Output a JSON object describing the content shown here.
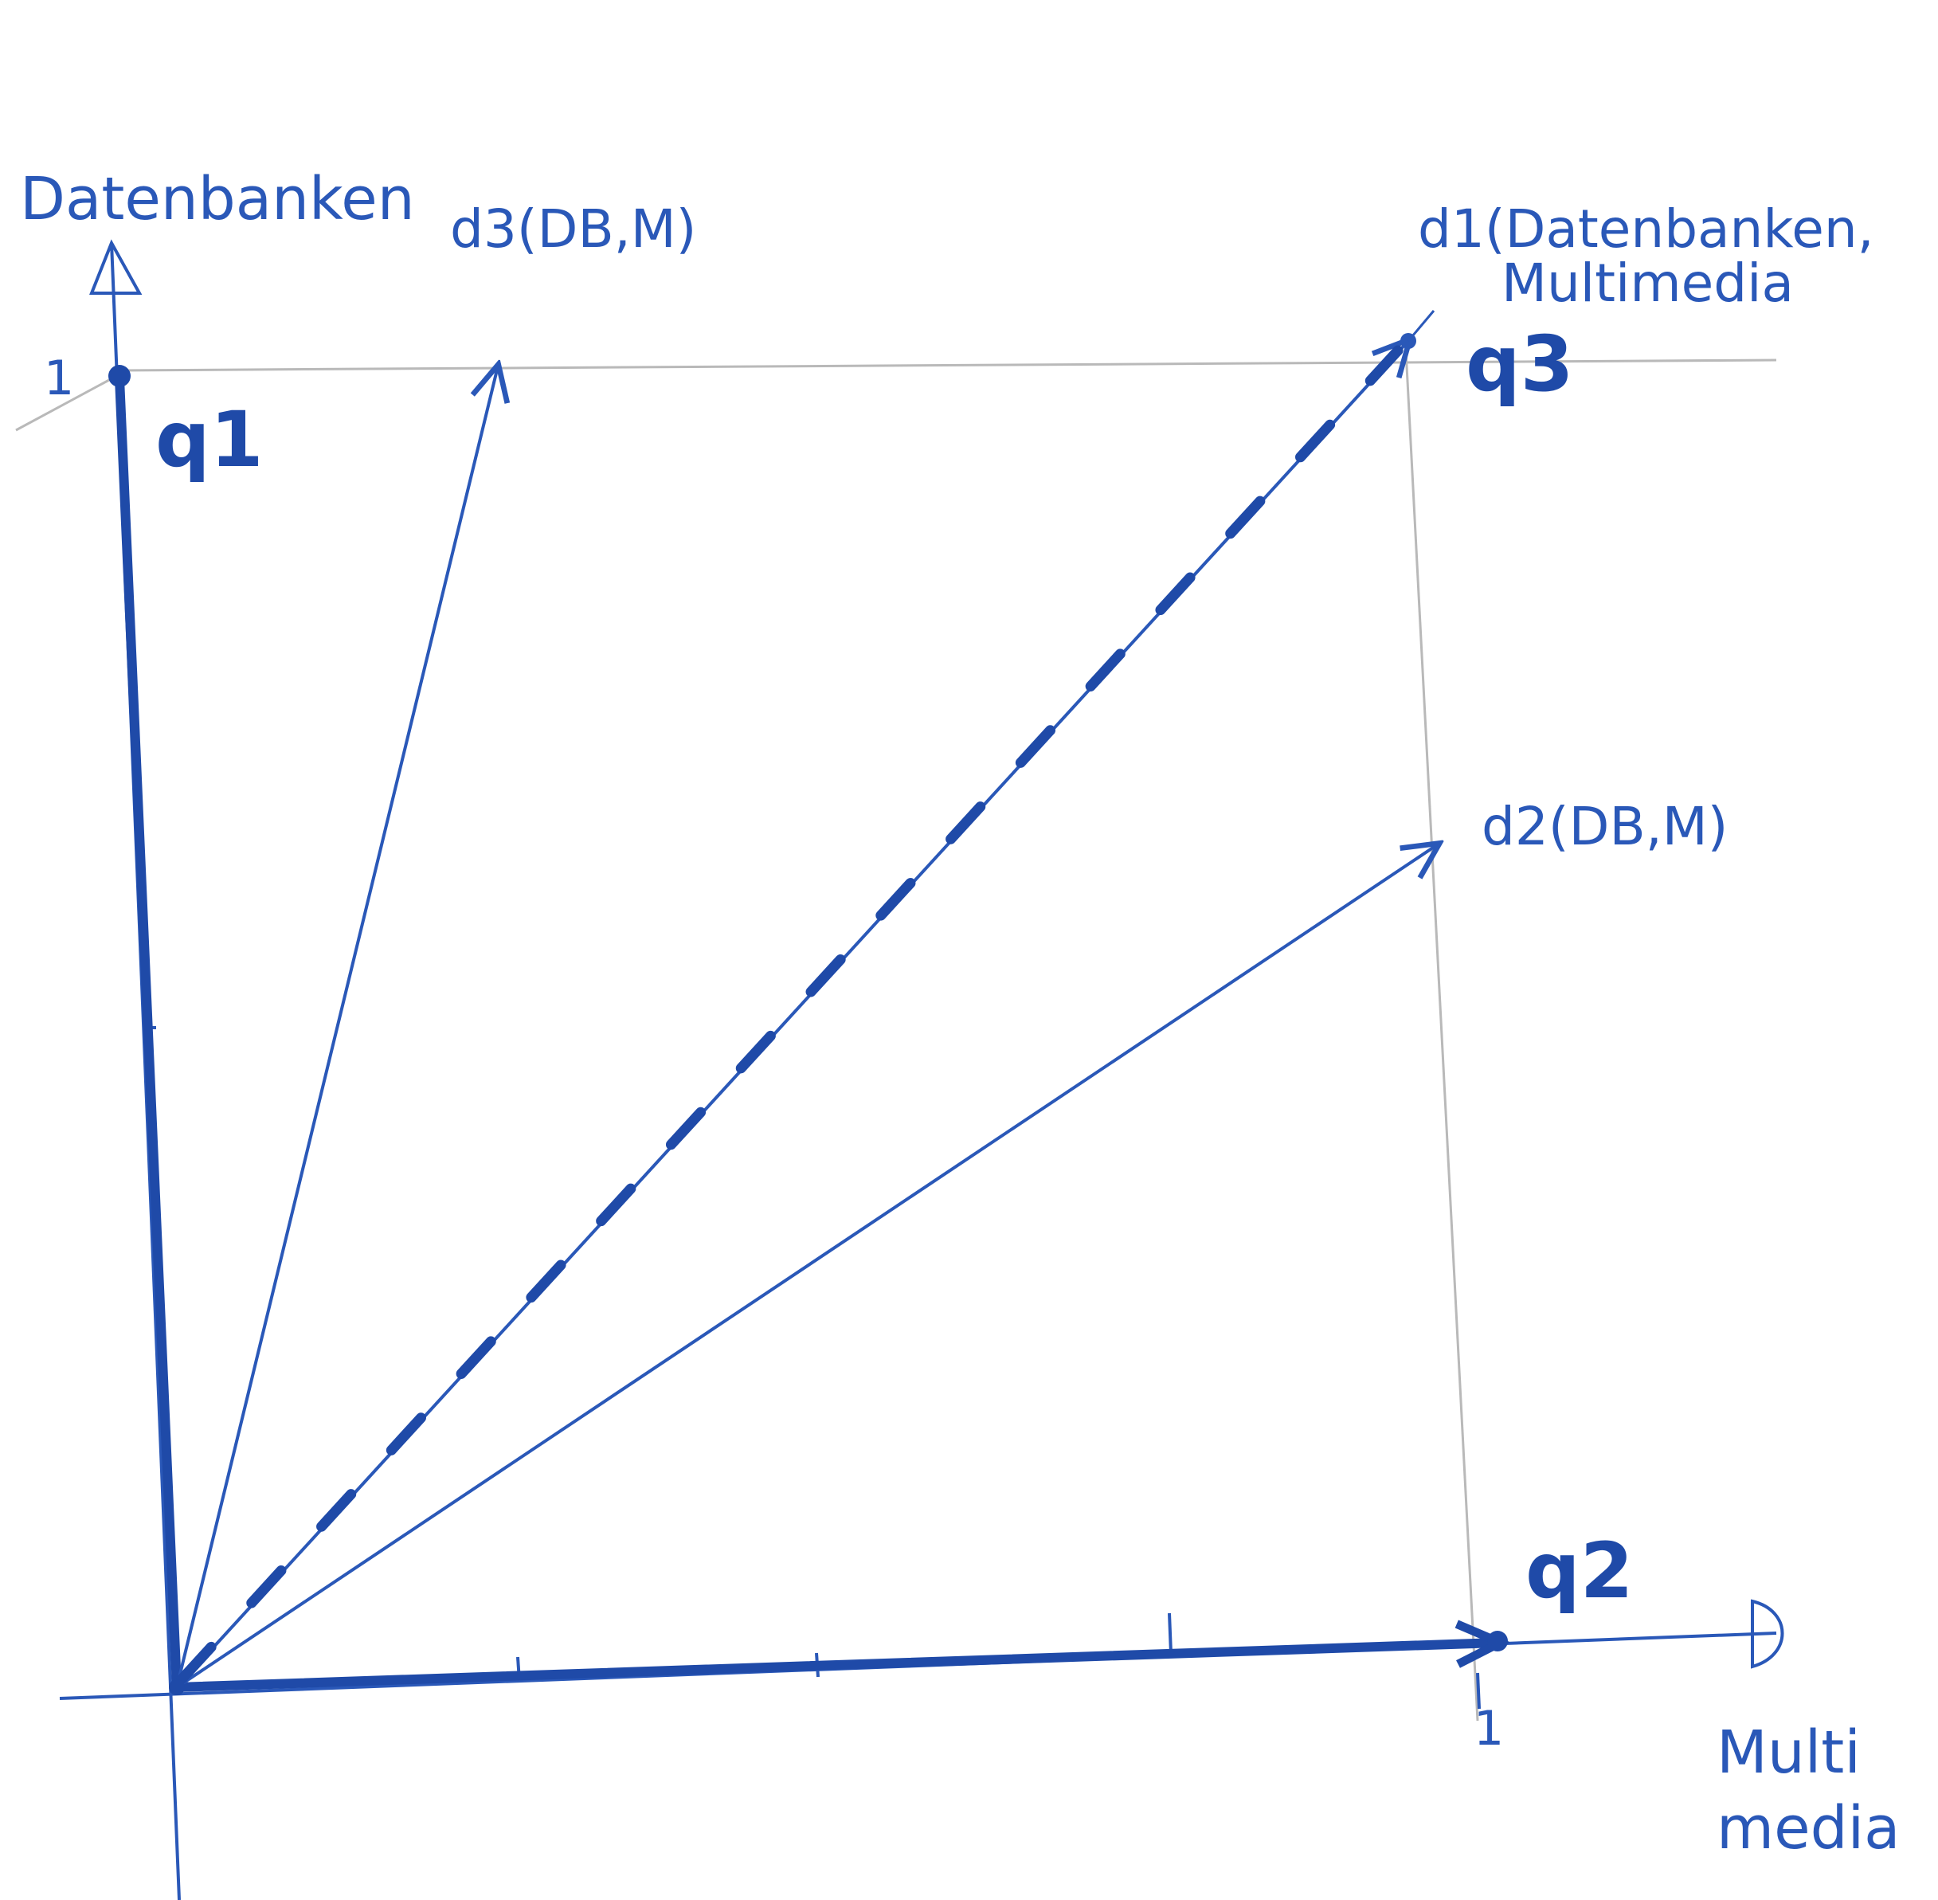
{
  "axes": {
    "y_label": "Datenbanken",
    "x_label_line1": "Multi",
    "x_label_line2": "media",
    "x_tick": "1",
    "y_tick": "1"
  },
  "vectors": {
    "d1_line1": "d1(Datenbanken,",
    "d1_line2": "Multimedia",
    "d2": "d2(DB,M)",
    "d3": "d3(DB,M)"
  },
  "queries": {
    "q1": "q1",
    "q2": "q2",
    "q3": "q3"
  },
  "colors": {
    "ink": "#2a58b8",
    "ink_bold": "#1f4aa8",
    "pencil": "#b9b9b9"
  }
}
